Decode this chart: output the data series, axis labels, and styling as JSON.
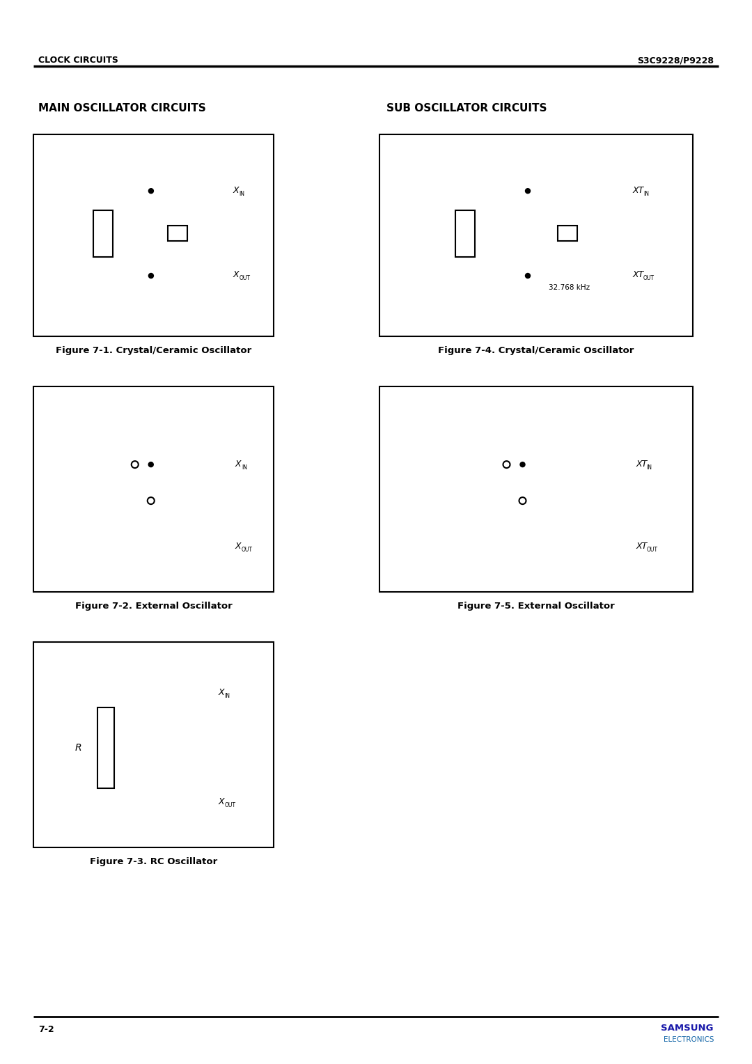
{
  "page_title_left": "CLOCK CIRCUITS",
  "page_title_right": "S3C9228/P9228",
  "section_left": "MAIN OSCILLATOR CIRCUITS",
  "section_right": "SUB OSCILLATOR CIRCUITS",
  "fig1_caption": "Figure 7-1. Crystal/Ceramic Oscillator",
  "fig2_caption": "Figure 7-2. External Oscillator",
  "fig3_caption": "Figure 7-3. RC Oscillator",
  "fig4_caption": "Figure 7-4. Crystal/Ceramic Oscillator",
  "fig5_caption": "Figure 7-5. External Oscillator",
  "freq_label": "32.768 kHz",
  "page_number": "7-2",
  "samsung_text": "SAMSUNG",
  "electronics_text": "ELECTRONICS",
  "samsung_color": "#1a1aaa",
  "electronics_color": "#1a6aaa",
  "bg_color": "#FFFFFF",
  "line_color": "#000000"
}
